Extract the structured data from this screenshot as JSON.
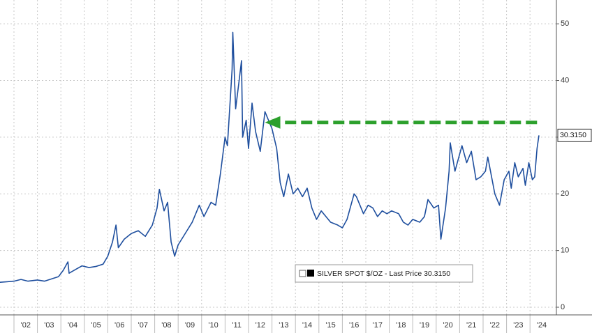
{
  "chart_data": {
    "type": "line",
    "series": [
      {
        "name": "SILVER SPOT $/OZ - Last Price 30.3150",
        "color": "#1f4f9e",
        "x": [
          2001.4,
          2001.7,
          2002.0,
          2002.3,
          2002.6,
          2003.0,
          2003.3,
          2003.6,
          2003.9,
          2004.1,
          2004.3,
          2004.35,
          2004.6,
          2004.9,
          2005.2,
          2005.5,
          2005.8,
          2006.0,
          2006.2,
          2006.35,
          2006.45,
          2006.7,
          2007.0,
          2007.3,
          2007.6,
          2007.9,
          2008.1,
          2008.2,
          2008.4,
          2008.55,
          2008.7,
          2008.85,
          2009.0,
          2009.3,
          2009.6,
          2009.9,
          2010.1,
          2010.4,
          2010.6,
          2010.8,
          2011.0,
          2011.1,
          2011.3,
          2011.33,
          2011.45,
          2011.6,
          2011.7,
          2011.75,
          2011.9,
          2012.0,
          2012.15,
          2012.3,
          2012.5,
          2012.7,
          2012.85,
          2013.0,
          2013.2,
          2013.35,
          2013.5,
          2013.7,
          2013.9,
          2014.1,
          2014.3,
          2014.5,
          2014.7,
          2014.9,
          2015.1,
          2015.3,
          2015.5,
          2015.8,
          2016.0,
          2016.2,
          2016.5,
          2016.6,
          2016.9,
          2017.1,
          2017.3,
          2017.5,
          2017.7,
          2017.9,
          2018.1,
          2018.4,
          2018.6,
          2018.8,
          2019.0,
          2019.3,
          2019.5,
          2019.65,
          2019.9,
          2020.1,
          2020.2,
          2020.4,
          2020.55,
          2020.6,
          2020.8,
          2021.0,
          2021.1,
          2021.3,
          2021.5,
          2021.7,
          2021.9,
          2022.1,
          2022.2,
          2022.5,
          2022.7,
          2022.9,
          2023.1,
          2023.2,
          2023.35,
          2023.5,
          2023.7,
          2023.8,
          2023.95,
          2024.1,
          2024.2,
          2024.3,
          2024.38
        ],
        "values": [
          4.4,
          4.5,
          4.6,
          4.9,
          4.6,
          4.8,
          4.6,
          5.0,
          5.4,
          6.5,
          8.0,
          6.0,
          6.6,
          7.3,
          7.0,
          7.2,
          7.6,
          9.0,
          11.5,
          14.5,
          10.5,
          12.0,
          13.0,
          13.5,
          12.5,
          14.5,
          17.5,
          20.8,
          17.0,
          18.5,
          11.5,
          9.0,
          11.0,
          13.0,
          15.0,
          18.0,
          16.0,
          18.5,
          18.0,
          23.5,
          30.0,
          28.5,
          42.0,
          48.5,
          35.0,
          40.0,
          43.5,
          30.0,
          33.0,
          28.0,
          36.0,
          31.0,
          27.5,
          34.5,
          33.0,
          31.5,
          28.0,
          22.0,
          19.5,
          23.5,
          20.0,
          21.0,
          19.5,
          21.0,
          17.5,
          15.5,
          17.0,
          16.0,
          15.0,
          14.5,
          14.0,
          15.5,
          20.0,
          19.5,
          16.5,
          18.0,
          17.5,
          16.0,
          17.0,
          16.5,
          17.0,
          16.5,
          15.0,
          14.5,
          15.5,
          15.0,
          16.0,
          19.0,
          17.5,
          18.0,
          12.0,
          17.5,
          24.0,
          29.0,
          24.0,
          27.0,
          28.5,
          25.5,
          27.5,
          22.5,
          23.0,
          24.0,
          26.5,
          20.0,
          18.0,
          22.5,
          24.0,
          21.0,
          25.5,
          23.0,
          24.5,
          21.5,
          25.5,
          22.5,
          23.0,
          28.0,
          30.315
        ]
      }
    ],
    "last_price": {
      "value": 30.315,
      "label": "30.3150"
    },
    "arrow": {
      "x_from": 2024.3,
      "x_to": 2012.7,
      "y": 32.6,
      "color": "#2ca02c"
    },
    "xlim": [
      2001.405,
      2025.125
    ],
    "ylim": [
      -1.35,
      54.2
    ],
    "yticks": [
      0,
      10,
      20,
      30,
      40,
      50
    ],
    "xticks": [
      {
        "value": 2002,
        "label": "'02"
      },
      {
        "value": 2003,
        "label": "'03"
      },
      {
        "value": 2004,
        "label": "'04"
      },
      {
        "value": 2005,
        "label": "'05"
      },
      {
        "value": 2006,
        "label": "'06"
      },
      {
        "value": 2007,
        "label": "'07"
      },
      {
        "value": 2008,
        "label": "'08"
      },
      {
        "value": 2009,
        "label": "'09"
      },
      {
        "value": 2010,
        "label": "'10"
      },
      {
        "value": 2011,
        "label": "'11"
      },
      {
        "value": 2012,
        "label": "'12"
      },
      {
        "value": 2013,
        "label": "'13"
      },
      {
        "value": 2014,
        "label": "'14"
      },
      {
        "value": 2015,
        "label": "'15"
      },
      {
        "value": 2016,
        "label": "'16"
      },
      {
        "value": 2017,
        "label": "'17"
      },
      {
        "value": 2018,
        "label": "'18"
      },
      {
        "value": 2019,
        "label": "'19"
      },
      {
        "value": 2020,
        "label": "'20"
      },
      {
        "value": 2021,
        "label": "'21"
      },
      {
        "value": 2022,
        "label": "'22"
      },
      {
        "value": 2023,
        "label": "'23"
      },
      {
        "value": 2024,
        "label": "'24"
      }
    ],
    "grid": true
  }
}
